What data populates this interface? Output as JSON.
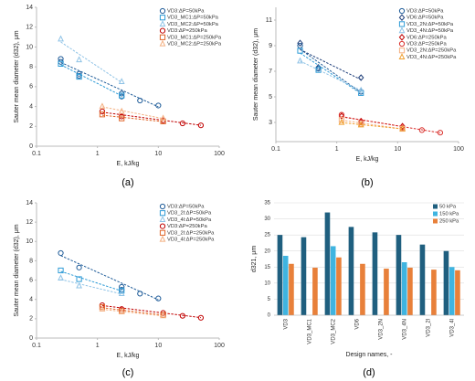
{
  "chart_data": [
    {
      "type": "scatter",
      "caption": "(a)",
      "xlabel": "E, kJ/kg",
      "ylabel": "Sauter mean diameter (d32), μm",
      "xscale": "log",
      "xlim": [
        0.1,
        100
      ],
      "xticks": [
        0.1,
        1,
        10,
        100
      ],
      "ylim": [
        0,
        14
      ],
      "yticks": [
        0,
        2,
        4,
        6,
        8,
        10,
        12,
        14
      ],
      "legend": "upper right",
      "trendline": true,
      "series": [
        {
          "name": "VD3:ΔP=50kPa",
          "color": "#1f5c99",
          "marker": "circle",
          "x": [
            0.25,
            0.25,
            0.5,
            0.5,
            2.5,
            2.5,
            5,
            10
          ],
          "values": [
            8.8,
            8.5,
            7.3,
            7.1,
            5.3,
            5.0,
            4.6,
            4.1
          ]
        },
        {
          "name": "VD3_MC1:ΔP=50kPa",
          "color": "#2e9bd6",
          "marker": "square",
          "x": [
            0.25,
            0.5,
            2.5
          ],
          "values": [
            8.3,
            7.0,
            5.1
          ]
        },
        {
          "name": "VD3_MC2:ΔP=50kPa",
          "color": "#8fc3e6",
          "marker": "triangle",
          "x": [
            0.25,
            0.5,
            2.5
          ],
          "values": [
            10.8,
            8.7,
            6.5
          ]
        },
        {
          "name": "VD3:ΔP=250kPa",
          "color": "#c00000",
          "marker": "circle",
          "x": [
            1.2,
            2.5,
            12,
            25,
            50
          ],
          "values": [
            3.5,
            3.0,
            2.6,
            2.3,
            2.1
          ]
        },
        {
          "name": "VD3_MC1:ΔP=250kPa",
          "color": "#e0662a",
          "marker": "square",
          "x": [
            1.2,
            2.5,
            12
          ],
          "values": [
            3.2,
            2.8,
            2.5
          ]
        },
        {
          "name": "VD3_MC2:ΔP=250kPa",
          "color": "#f4b183",
          "marker": "triangle",
          "x": [
            1.2,
            2.5,
            12
          ],
          "values": [
            4.0,
            3.5,
            2.8
          ]
        }
      ]
    },
    {
      "type": "scatter",
      "caption": "(b)",
      "xlabel": "E, kJ/kg",
      "ylabel": "Sauter mean diameter (d32), μm",
      "xscale": "log",
      "xlim": [
        0.1,
        100
      ],
      "xticks": [
        0.1,
        1,
        10,
        100
      ],
      "ylim": [
        1.5,
        12
      ],
      "yticks": [
        3,
        5,
        7,
        9,
        11
      ],
      "legend": "upper right",
      "trendline": true,
      "series": [
        {
          "name": "VD3:ΔP=50kPa",
          "color": "#1f5c99",
          "marker": "circle",
          "x": [
            0.25,
            0.5,
            2.5
          ],
          "values": [
            9.0,
            7.2,
            5.4
          ]
        },
        {
          "name": "VD6:ΔP=50kPa",
          "color": "#1f3f7a",
          "marker": "diamond",
          "x": [
            0.25,
            0.5,
            2.5
          ],
          "values": [
            9.2,
            7.3,
            6.5
          ]
        },
        {
          "name": "VD3_2N:ΔP=50kPa",
          "color": "#2e9bd6",
          "marker": "square",
          "x": [
            0.25,
            0.5,
            2.5
          ],
          "values": [
            8.6,
            7.1,
            5.3
          ]
        },
        {
          "name": "VD3_4N:ΔP=50kPa",
          "color": "#8fc3e6",
          "marker": "triangle",
          "x": [
            0.25,
            2.5
          ],
          "values": [
            7.8,
            5.5
          ]
        },
        {
          "name": "VD6:ΔP=250kPa",
          "color": "#c00000",
          "marker": "diamond",
          "x": [
            1.2,
            2.5,
            12
          ],
          "values": [
            3.5,
            3.1,
            2.7
          ]
        },
        {
          "name": "VD3:ΔP=250kPa",
          "color": "#d9302c",
          "marker": "circle",
          "x": [
            1.2,
            2.5,
            12,
            25,
            50
          ],
          "values": [
            3.6,
            3.0,
            2.6,
            2.4,
            2.2
          ]
        },
        {
          "name": "VD3_2N:ΔP=250kPa",
          "color": "#f4b183",
          "marker": "square",
          "x": [
            1.2,
            2.5,
            12
          ],
          "values": [
            3.2,
            2.9,
            2.5
          ]
        },
        {
          "name": "VD3_4N:ΔP=250kPa",
          "color": "#f0a030",
          "marker": "triangle",
          "x": [
            1.2,
            2.5,
            12
          ],
          "values": [
            3.0,
            2.8,
            2.5
          ]
        }
      ]
    },
    {
      "type": "scatter",
      "caption": "(c)",
      "xlabel": "E, kJ/kg",
      "ylabel": "Sauter mean diameter (d32), μm",
      "xscale": "log",
      "xlim": [
        0.1,
        100
      ],
      "xticks": [
        0.1,
        1,
        10,
        100
      ],
      "ylim": [
        0,
        14
      ],
      "yticks": [
        0,
        2,
        4,
        6,
        8,
        10,
        12,
        14
      ],
      "legend": "upper right",
      "trendline": true,
      "series": [
        {
          "name": "VD3:ΔP=50kPa",
          "color": "#1f5c99",
          "marker": "circle",
          "x": [
            0.25,
            0.5,
            2.5,
            2.5,
            5,
            10
          ],
          "values": [
            8.8,
            7.3,
            5.3,
            5.0,
            4.6,
            4.1
          ]
        },
        {
          "name": "VD3_2l:ΔP=50kPa",
          "color": "#2e9bd6",
          "marker": "square",
          "x": [
            0.25,
            0.5,
            2.5
          ],
          "values": [
            7.0,
            6.1,
            4.9
          ]
        },
        {
          "name": "VD3_4l:ΔP=50kPa",
          "color": "#8fc3e6",
          "marker": "triangle",
          "x": [
            0.25,
            0.5,
            2.5
          ],
          "values": [
            6.2,
            5.4,
            4.6
          ]
        },
        {
          "name": "VD3:ΔP=250kPa",
          "color": "#c00000",
          "marker": "circle",
          "x": [
            1.2,
            2.5,
            12,
            25,
            50
          ],
          "values": [
            3.4,
            3.0,
            2.6,
            2.3,
            2.1
          ]
        },
        {
          "name": "VD3_2l:ΔP=250kPa",
          "color": "#e0662a",
          "marker": "square",
          "x": [
            1.2,
            2.5,
            12
          ],
          "values": [
            3.2,
            2.8,
            2.4
          ]
        },
        {
          "name": "VD3_4l:ΔP=250kPa",
          "color": "#f4b183",
          "marker": "triangle",
          "x": [
            1.2,
            2.5,
            12
          ],
          "values": [
            3.0,
            2.7,
            2.3
          ]
        }
      ]
    },
    {
      "type": "bar",
      "caption": "(d)",
      "xlabel": "Design names, -",
      "ylabel": "d321, μm",
      "ylim": [
        0,
        35
      ],
      "yticks": [
        0,
        5,
        10,
        15,
        20,
        25,
        30,
        35
      ],
      "grid": true,
      "legend": "upper right",
      "categories": [
        "VD3",
        "VD3_MC1",
        "VD3_MC2",
        "VD6",
        "VD3_2N",
        "VD3_4N",
        "VD3_2l",
        "VD3_4l"
      ],
      "series": [
        {
          "name": "50 kPa",
          "color": "#1f5f7f",
          "values": [
            25,
            24.3,
            32,
            27.5,
            25.8,
            25,
            22,
            20
          ]
        },
        {
          "name": "150 kPa",
          "color": "#3fb4e0",
          "values": [
            18.5,
            null,
            21.5,
            null,
            null,
            16.5,
            null,
            15
          ]
        },
        {
          "name": "250 kPa",
          "color": "#e8803a",
          "values": [
            16,
            14.8,
            18,
            16,
            14.5,
            14.8,
            14.2,
            14
          ]
        }
      ]
    }
  ]
}
